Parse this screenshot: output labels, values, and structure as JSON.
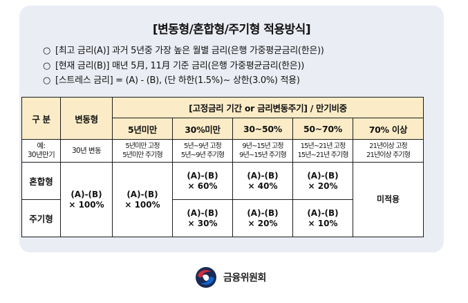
{
  "title": "[변동형/혼합형/주기형 적용방식]",
  "bullets": [
    {
      "mark": "○",
      "text": "[최고 금리(A)] 과거 5년중 가장 높은 월별 금리(은행 가중평균금리(한은))"
    },
    {
      "mark": "○",
      "text": "[현재 금리(B)] 매년 5月, 11月 기준 금리(은행 가중평균금리(한은))"
    },
    {
      "mark": "○",
      "text": "[스트레스 금리] = (A) - (B), (단 하한(1.5%)~ 상한(3.0%) 적용)"
    }
  ],
  "table": {
    "corner_label": "구 분",
    "variable_header": "변동형",
    "fixed_group_header": "[고정금리  기간 or  금리변동주기] / 만기비중",
    "columns": [
      "5년미만",
      "30%미만",
      "30~50%",
      "50~70%",
      "70% 이상"
    ],
    "example_label": [
      "예:",
      "30년만기"
    ],
    "example_variable": "30년 변동",
    "examples": [
      [
        "5년미만 고정",
        "5년미만 주기형"
      ],
      [
        "5년~9년 고정",
        "5년~9년 주기형"
      ],
      [
        "9년~15년 고정",
        "9년~15년 주기형"
      ],
      [
        "15년~21년 고정",
        "15년~21년 주기형"
      ],
      [
        "21년이상 고정",
        "21년이상 주기형"
      ]
    ],
    "rows": [
      {
        "label": "혼합형",
        "values": [
          [
            "(A)-(B)",
            "× 60%"
          ],
          [
            "(A)-(B)",
            "× 40%"
          ],
          [
            "(A)-(B)",
            "× 20%"
          ]
        ]
      },
      {
        "label": "주기형",
        "values": [
          [
            "(A)-(B)",
            "× 30%"
          ],
          [
            "(A)-(B)",
            "× 20%"
          ],
          [
            "(A)-(B)",
            "× 10%"
          ]
        ]
      }
    ],
    "variable_value": [
      "(A)-(B)",
      "× 100%"
    ],
    "under5_value": [
      "(A)-(B)",
      "× 100%"
    ],
    "not_applied": "미적용"
  },
  "footer": {
    "logo_icon": "fsc-emblem-icon",
    "org_name": "금융위원회",
    "colors": {
      "emblem_red": "#cd2e3a",
      "emblem_blue": "#0f64cd",
      "emblem_dark": "#1a2a55"
    }
  },
  "colors": {
    "panel_bg": "#ebedf4",
    "header_bg": "#fbecc7",
    "border": "#1a1a1a"
  }
}
